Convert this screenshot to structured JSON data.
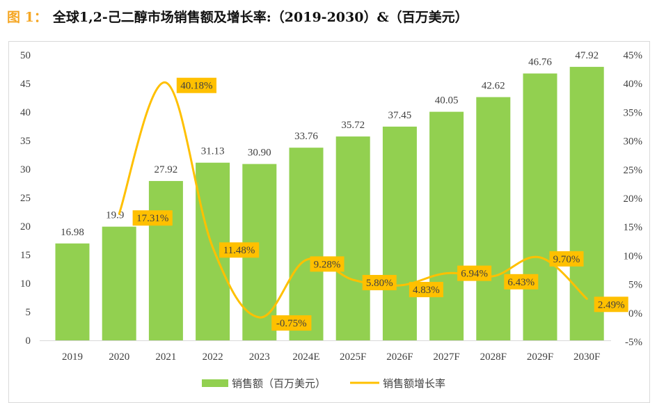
{
  "title": {
    "prefix": "图 1：",
    "text": "全球1,2-己二醇市场销售额及增长率:（2019-2030）&（百万美元）"
  },
  "colors": {
    "bar": "#92D050",
    "line": "#FFC000",
    "label_bg": "#FFC000",
    "title_prefix": "#F5A623",
    "text": "#404040"
  },
  "chart_data": {
    "type": "bar",
    "title": "全球1,2-己二醇市场销售额及增长率:（2019-2030）&（百万美元）",
    "categories": [
      "2019",
      "2020",
      "2021",
      "2022",
      "2023",
      "2024E",
      "2025F",
      "2026F",
      "2027F",
      "2028F",
      "2029F",
      "2030F"
    ],
    "series": [
      {
        "name": "销售额（百万美元）",
        "type": "bar",
        "axis": "left",
        "values": [
          16.98,
          19.92,
          27.92,
          31.13,
          30.9,
          33.76,
          35.72,
          37.45,
          40.05,
          42.62,
          46.76,
          47.92
        ],
        "labels": [
          "16.98",
          "19.9",
          "27.92",
          "31.13",
          "30.90",
          "33.76",
          "35.72",
          "37.45",
          "40.05",
          "42.62",
          "46.76",
          "47.92"
        ]
      },
      {
        "name": "销售额增长率",
        "type": "line",
        "axis": "right",
        "smooth": true,
        "start_index": 1,
        "values": [
          null,
          17.31,
          40.18,
          11.48,
          -0.75,
          9.28,
          5.8,
          4.83,
          6.94,
          6.43,
          9.7,
          2.49
        ],
        "labels": [
          null,
          "17.31%",
          "40.18%",
          "11.48%",
          "-0.75%",
          "9.28%",
          "5.80%",
          "4.83%",
          "6.94%",
          "6.43%",
          "9.70%",
          "2.49%"
        ]
      }
    ],
    "y_left": {
      "min": 0,
      "max": 50,
      "step": 5,
      "ticks": [
        "0",
        "5",
        "10",
        "15",
        "20",
        "25",
        "30",
        "35",
        "40",
        "45",
        "50"
      ]
    },
    "y_right": {
      "min": -5,
      "max": 45,
      "step": 5,
      "ticks": [
        "-5%",
        "0%",
        "5%",
        "10%",
        "15%",
        "20%",
        "25%",
        "30%",
        "35%",
        "40%",
        "45%"
      ]
    },
    "xlabel": "",
    "ylabel": "",
    "grid": false,
    "legend": {
      "position": "bottom",
      "items": [
        {
          "label": "销售额（百万美元）",
          "kind": "bar"
        },
        {
          "label": "销售额增长率",
          "kind": "line"
        }
      ]
    }
  }
}
